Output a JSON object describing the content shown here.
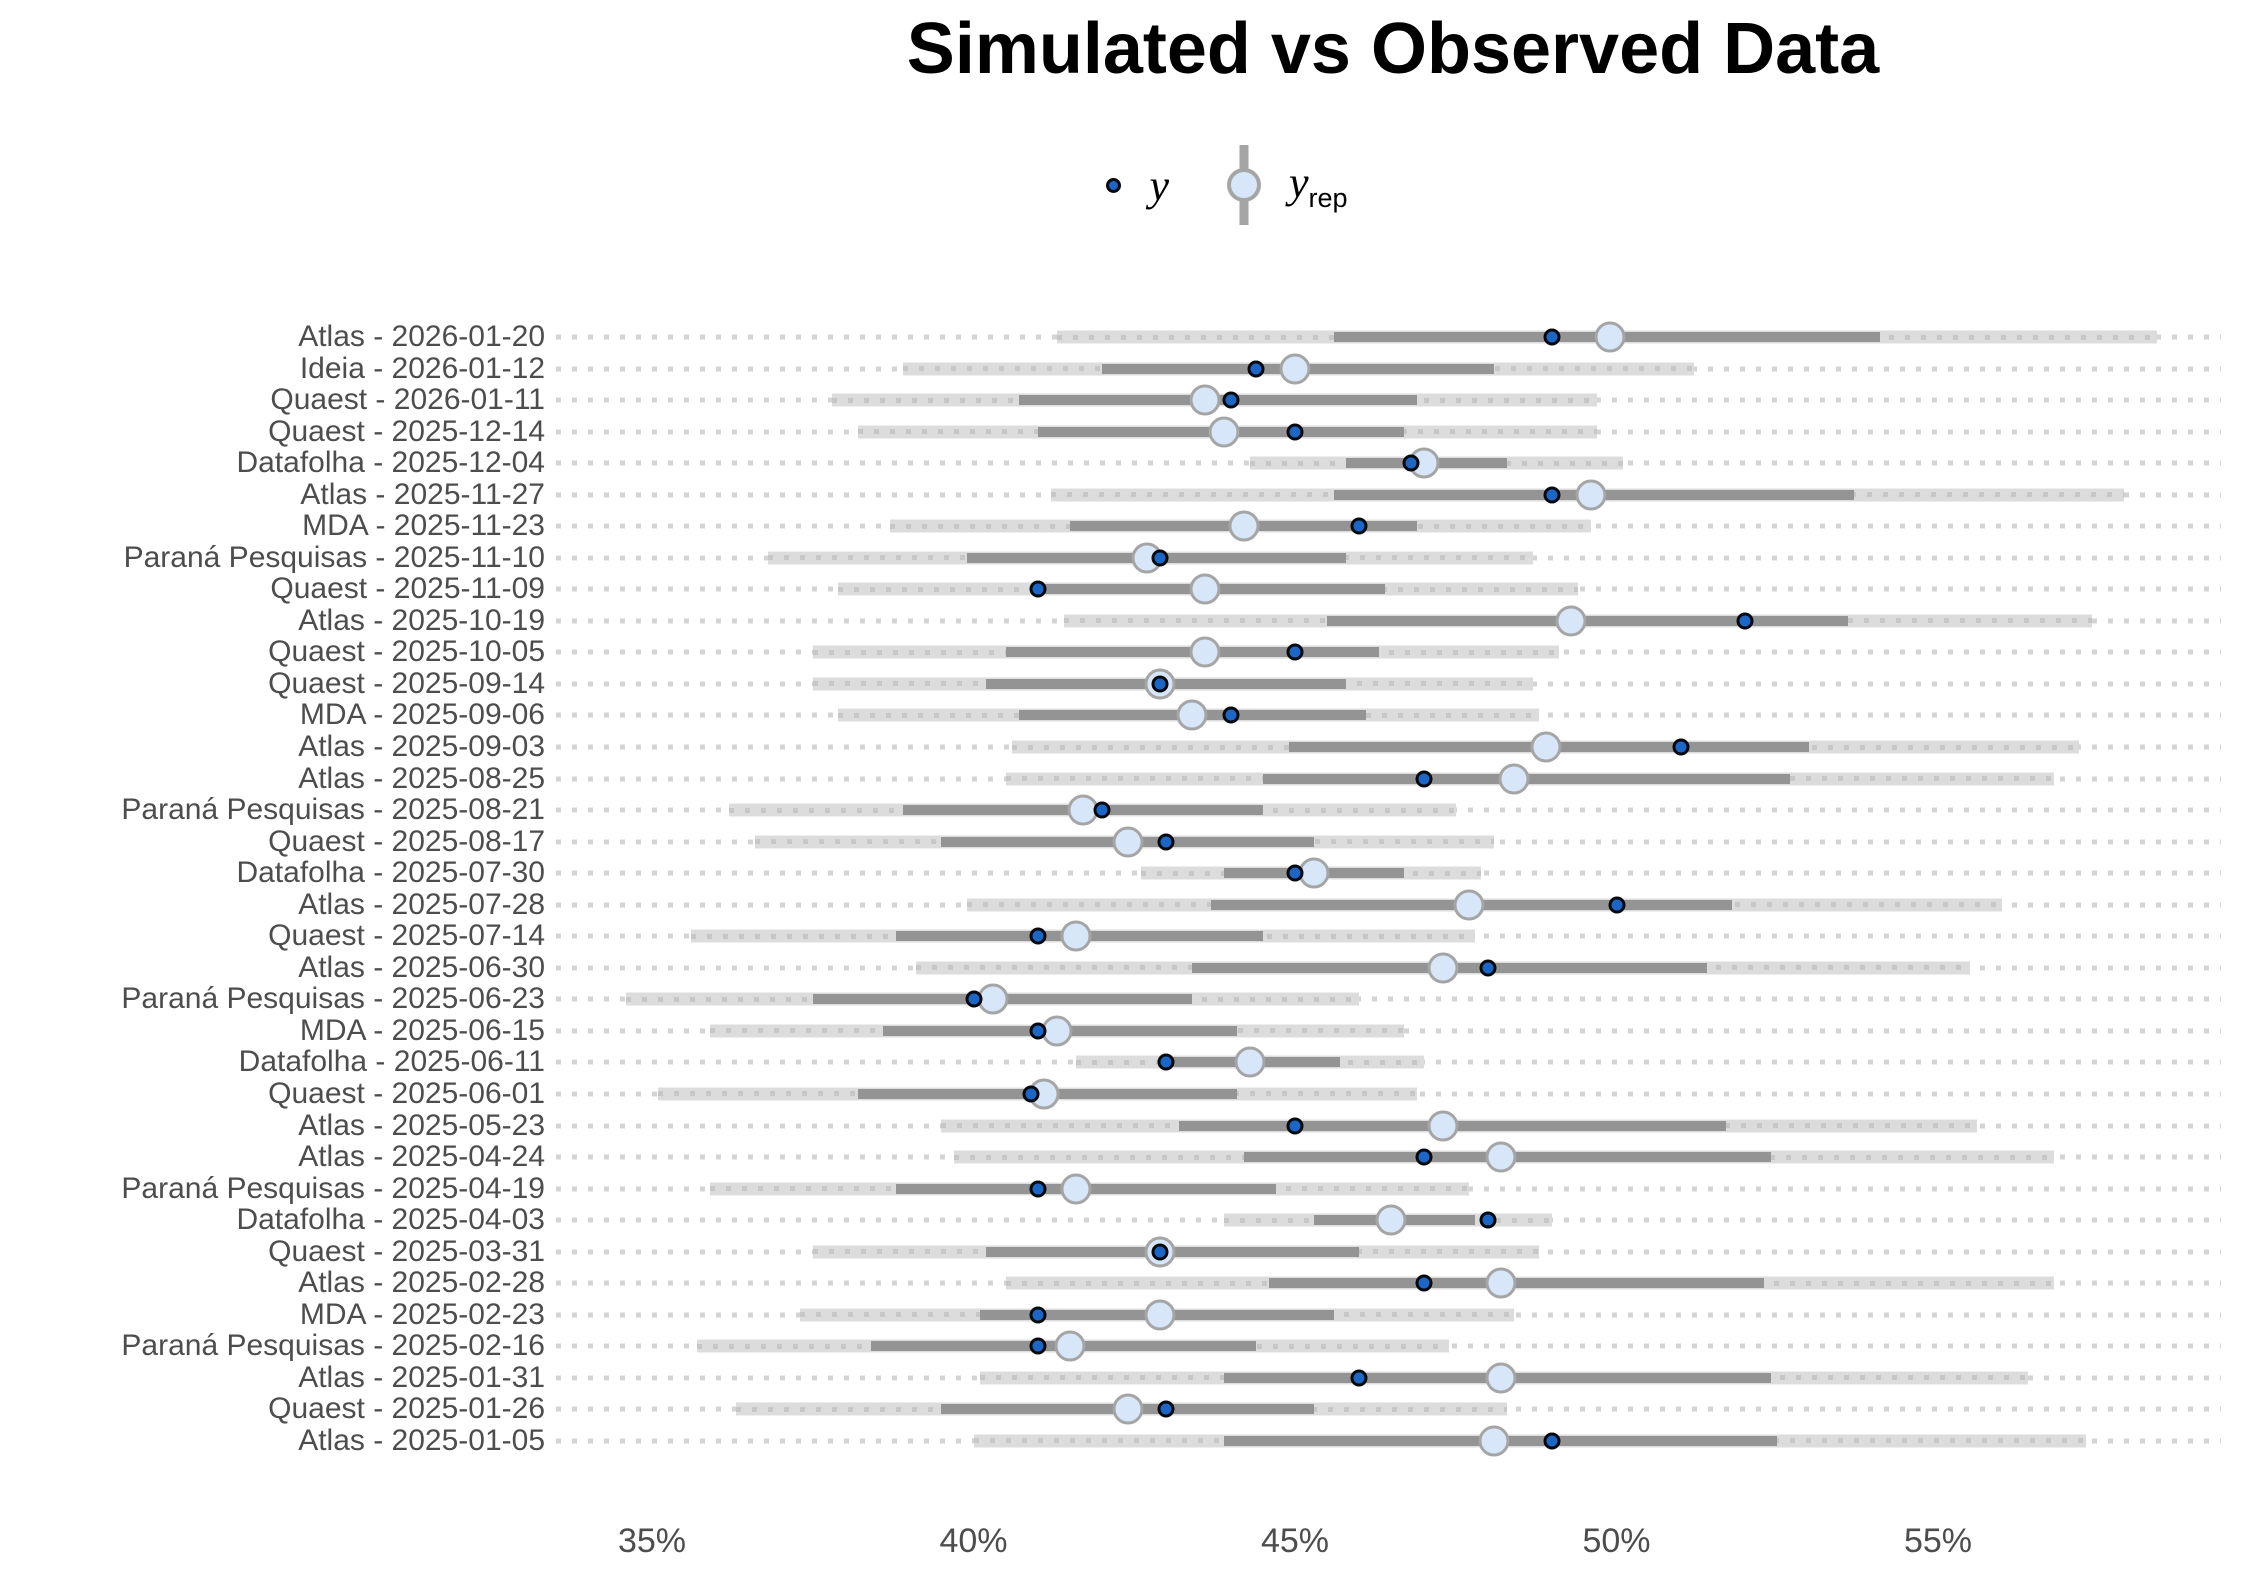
{
  "title": "Simulated vs Observed Data",
  "legend": {
    "y_label": "y",
    "yrep_main": "y",
    "yrep_sub": "rep"
  },
  "colors": {
    "background_dots": "#d4d4d4",
    "outer_band": "#dcdcdc",
    "outer_band_texture": "#c7c7c7",
    "inner_band": "#949494",
    "yrep_fill": "#d7e6f8",
    "yrep_stroke": "#a5a5a5",
    "y_fill": "#1e66c4",
    "y_stroke": "#06090f",
    "axis_text": "#4d4d4d",
    "title_text": "#000000"
  },
  "chart_data": {
    "type": "intervals",
    "title": "Simulated vs Observed Data",
    "legend_entries": [
      "y",
      "y_rep"
    ],
    "x_axis": {
      "unit": "%",
      "range_shown": [
        33.5,
        59.4
      ],
      "ticks": [
        {
          "label": "35%",
          "value": 35
        },
        {
          "label": "40%",
          "value": 40
        },
        {
          "label": "45%",
          "value": 45
        },
        {
          "label": "50%",
          "value": 50
        },
        {
          "label": "55%",
          "value": 55
        }
      ]
    },
    "rows": [
      {
        "label": "Atlas - 2026-01-20",
        "outer": [
          41.3,
          58.4
        ],
        "inner": [
          45.6,
          54.1
        ],
        "yrep": 49.9,
        "y": 49.0
      },
      {
        "label": "Ideia - 2026-01-12",
        "outer": [
          38.9,
          51.2
        ],
        "inner": [
          42.0,
          48.1
        ],
        "yrep": 45.0,
        "y": 44.4
      },
      {
        "label": "Quaest - 2026-01-11",
        "outer": [
          37.8,
          49.7
        ],
        "inner": [
          40.7,
          46.9
        ],
        "yrep": 43.6,
        "y": 44.0
      },
      {
        "label": "Quaest - 2025-12-14",
        "outer": [
          38.2,
          49.7
        ],
        "inner": [
          41.0,
          46.7
        ],
        "yrep": 43.9,
        "y": 45.0
      },
      {
        "label": "Datafolha - 2025-12-04",
        "outer": [
          44.3,
          50.1
        ],
        "inner": [
          45.8,
          48.3
        ],
        "yrep": 47.0,
        "y": 46.8
      },
      {
        "label": "Atlas - 2025-11-27",
        "outer": [
          41.2,
          57.9
        ],
        "inner": [
          45.6,
          53.7
        ],
        "yrep": 49.6,
        "y": 49.0
      },
      {
        "label": "MDA - 2025-11-23",
        "outer": [
          38.7,
          49.6
        ],
        "inner": [
          41.5,
          46.9
        ],
        "yrep": 44.2,
        "y": 46.0
      },
      {
        "label": "Paraná Pesquisas - 2025-11-10",
        "outer": [
          36.8,
          48.7
        ],
        "inner": [
          39.9,
          45.8
        ],
        "yrep": 42.7,
        "y": 42.9
      },
      {
        "label": "Quaest - 2025-11-09",
        "outer": [
          37.9,
          49.4
        ],
        "inner": [
          41.0,
          46.4
        ],
        "yrep": 43.6,
        "y": 41.0
      },
      {
        "label": "Atlas - 2025-10-19",
        "outer": [
          41.4,
          57.4
        ],
        "inner": [
          45.5,
          53.6
        ],
        "yrep": 49.3,
        "y": 52.0
      },
      {
        "label": "Quaest - 2025-10-05",
        "outer": [
          37.5,
          49.1
        ],
        "inner": [
          40.5,
          46.3
        ],
        "yrep": 43.6,
        "y": 45.0
      },
      {
        "label": "Quaest - 2025-09-14",
        "outer": [
          37.5,
          48.7
        ],
        "inner": [
          40.2,
          45.8
        ],
        "yrep": 42.9,
        "y": 42.9
      },
      {
        "label": "MDA - 2025-09-06",
        "outer": [
          37.9,
          48.8
        ],
        "inner": [
          40.7,
          46.1
        ],
        "yrep": 43.4,
        "y": 44.0
      },
      {
        "label": "Atlas - 2025-09-03",
        "outer": [
          40.6,
          57.2
        ],
        "inner": [
          44.9,
          53.0
        ],
        "yrep": 48.9,
        "y": 51.0
      },
      {
        "label": "Atlas - 2025-08-25",
        "outer": [
          40.5,
          56.8
        ],
        "inner": [
          44.5,
          52.7
        ],
        "yrep": 48.4,
        "y": 47.0
      },
      {
        "label": "Paraná Pesquisas - 2025-08-21",
        "outer": [
          36.2,
          47.5
        ],
        "inner": [
          38.9,
          44.5
        ],
        "yrep": 41.7,
        "y": 42.0
      },
      {
        "label": "Quaest - 2025-08-17",
        "outer": [
          36.6,
          48.1
        ],
        "inner": [
          39.5,
          45.3
        ],
        "yrep": 42.4,
        "y": 43.0
      },
      {
        "label": "Datafolha - 2025-07-30",
        "outer": [
          42.6,
          47.9
        ],
        "inner": [
          43.9,
          46.7
        ],
        "yrep": 45.3,
        "y": 45.0
      },
      {
        "label": "Atlas - 2025-07-28",
        "outer": [
          39.9,
          56.0
        ],
        "inner": [
          43.7,
          51.8
        ],
        "yrep": 47.7,
        "y": 50.0
      },
      {
        "label": "Quaest - 2025-07-14",
        "outer": [
          35.6,
          47.8
        ],
        "inner": [
          38.8,
          44.5
        ],
        "yrep": 41.6,
        "y": 41.0
      },
      {
        "label": "Atlas - 2025-06-30",
        "outer": [
          39.1,
          55.5
        ],
        "inner": [
          43.4,
          51.4
        ],
        "yrep": 47.3,
        "y": 48.0
      },
      {
        "label": "Paraná Pesquisas - 2025-06-23",
        "outer": [
          34.6,
          46.0
        ],
        "inner": [
          37.5,
          43.4
        ],
        "yrep": 40.3,
        "y": 40.0
      },
      {
        "label": "MDA - 2025-06-15",
        "outer": [
          35.9,
          46.7
        ],
        "inner": [
          38.6,
          44.1
        ],
        "yrep": 41.3,
        "y": 41.0
      },
      {
        "label": "Datafolha - 2025-06-11",
        "outer": [
          41.6,
          47.0
        ],
        "inner": [
          43.0,
          45.7
        ],
        "yrep": 44.3,
        "y": 43.0
      },
      {
        "label": "Quaest - 2025-06-01",
        "outer": [
          35.1,
          46.9
        ],
        "inner": [
          38.2,
          44.1
        ],
        "yrep": 41.1,
        "y": 40.9
      },
      {
        "label": "Atlas - 2025-05-23",
        "outer": [
          39.5,
          55.6
        ],
        "inner": [
          43.2,
          51.7
        ],
        "yrep": 47.3,
        "y": 45.0
      },
      {
        "label": "Atlas - 2025-04-24",
        "outer": [
          39.7,
          56.8
        ],
        "inner": [
          44.2,
          52.4
        ],
        "yrep": 48.2,
        "y": 47.0
      },
      {
        "label": "Paraná Pesquisas - 2025-04-19",
        "outer": [
          35.9,
          47.7
        ],
        "inner": [
          38.8,
          44.7
        ],
        "yrep": 41.6,
        "y": 41.0
      },
      {
        "label": "Datafolha - 2025-04-03",
        "outer": [
          43.9,
          49.0
        ],
        "inner": [
          45.3,
          47.8
        ],
        "yrep": 46.5,
        "y": 48.0
      },
      {
        "label": "Quaest - 2025-03-31",
        "outer": [
          37.5,
          48.8
        ],
        "inner": [
          40.2,
          46.0
        ],
        "yrep": 42.9,
        "y": 42.9
      },
      {
        "label": "Atlas - 2025-02-28",
        "outer": [
          40.5,
          56.8
        ],
        "inner": [
          44.6,
          52.3
        ],
        "yrep": 48.2,
        "y": 47.0
      },
      {
        "label": "MDA - 2025-02-23",
        "outer": [
          37.3,
          48.4
        ],
        "inner": [
          40.1,
          45.6
        ],
        "yrep": 42.9,
        "y": 41.0
      },
      {
        "label": "Paraná Pesquisas - 2025-02-16",
        "outer": [
          35.7,
          47.4
        ],
        "inner": [
          38.4,
          44.4
        ],
        "yrep": 41.5,
        "y": 41.0
      },
      {
        "label": "Atlas - 2025-01-31",
        "outer": [
          40.1,
          56.4
        ],
        "inner": [
          43.9,
          52.4
        ],
        "yrep": 48.2,
        "y": 46.0
      },
      {
        "label": "Quaest - 2025-01-26",
        "outer": [
          36.3,
          48.3
        ],
        "inner": [
          39.5,
          45.3
        ],
        "yrep": 42.4,
        "y": 43.0
      },
      {
        "label": "Atlas - 2025-01-05",
        "outer": [
          40.0,
          57.3
        ],
        "inner": [
          43.9,
          52.5
        ],
        "yrep": 48.1,
        "y": 49.0
      }
    ]
  }
}
